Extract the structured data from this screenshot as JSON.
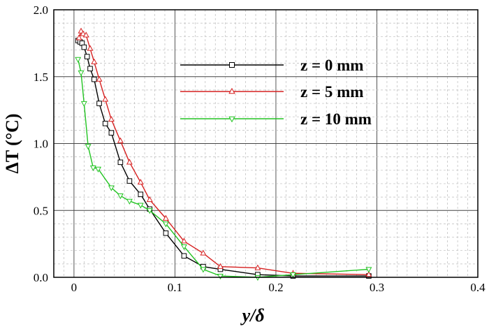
{
  "chart_data": {
    "type": "line",
    "title": "",
    "xlabel": "y/δ",
    "ylabel": "ΔT (°C)",
    "xlim": [
      -0.02,
      0.4
    ],
    "ylim": [
      0.0,
      2.0
    ],
    "x_ticks": [
      "0",
      "0.1",
      "0.2",
      "0.3",
      "0.4"
    ],
    "y_ticks": [
      "0.0",
      "0.5",
      "1.0",
      "1.5",
      "2.0"
    ],
    "grid": "major solid, minor dashed",
    "legend_position": "top-center",
    "series": [
      {
        "name": "z = 0 mm",
        "color": "#000000",
        "marker": "square",
        "x": [
          0.004,
          0.006,
          0.008,
          0.01,
          0.013,
          0.016,
          0.02,
          0.025,
          0.031,
          0.037,
          0.046,
          0.055,
          0.066,
          0.075,
          0.091,
          0.109,
          0.128,
          0.145,
          0.182,
          0.217,
          0.292
        ],
        "y": [
          1.77,
          1.76,
          1.75,
          1.72,
          1.65,
          1.56,
          1.48,
          1.3,
          1.15,
          1.08,
          0.86,
          0.72,
          0.62,
          0.51,
          0.33,
          0.16,
          0.08,
          0.06,
          0.02,
          0.01,
          0.01
        ]
      },
      {
        "name": "z = 5 mm",
        "color": "#d62020",
        "marker": "triangle-up",
        "x": [
          0.005,
          0.007,
          0.009,
          0.012,
          0.016,
          0.02,
          0.025,
          0.031,
          0.037,
          0.046,
          0.055,
          0.066,
          0.075,
          0.091,
          0.109,
          0.128,
          0.145,
          0.182,
          0.217,
          0.292
        ],
        "y": [
          1.79,
          1.84,
          1.82,
          1.81,
          1.71,
          1.61,
          1.48,
          1.33,
          1.18,
          1.02,
          0.86,
          0.71,
          0.58,
          0.44,
          0.27,
          0.18,
          0.08,
          0.07,
          0.03,
          0.02
        ]
      },
      {
        "name": "z = 10 mm",
        "color": "#22c422",
        "marker": "triangle-down",
        "x": [
          0.004,
          0.007,
          0.01,
          0.014,
          0.019,
          0.024,
          0.037,
          0.046,
          0.055,
          0.066,
          0.075,
          0.091,
          0.109,
          0.128,
          0.145,
          0.182,
          0.217,
          0.292
        ],
        "y": [
          1.63,
          1.53,
          1.3,
          0.98,
          0.82,
          0.81,
          0.67,
          0.61,
          0.57,
          0.54,
          0.5,
          0.4,
          0.23,
          0.06,
          0.01,
          0.0,
          0.02,
          0.06
        ]
      }
    ]
  }
}
